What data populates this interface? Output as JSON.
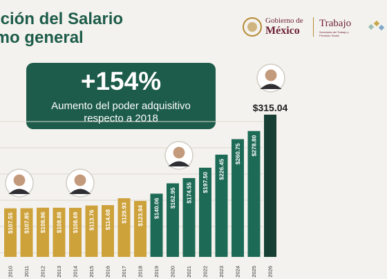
{
  "header": {
    "title_line1": "ución del Salario",
    "title_line2": "imo general",
    "gov_line1": "Gobierno de",
    "gov_line2": "México",
    "ministry": "Trabajo",
    "ministry_sub": "Secretaría del Trabajo y Previsión Social"
  },
  "callout": {
    "headline": "+154%",
    "line1": "Aumento del poder adquisitivo",
    "line2": "respecto a 2018"
  },
  "colors": {
    "gold": "#cda23b",
    "green": "#1d6a56",
    "dark_green": "#173f34",
    "title": "#1d5c4a"
  },
  "chart_data": {
    "type": "bar",
    "categories": [
      "2010",
      "2011",
      "2012",
      "2013",
      "2014",
      "2015",
      "2016",
      "2017",
      "2018",
      "2019",
      "2020",
      "2021",
      "2022",
      "2023",
      "2024",
      "2025",
      "2026"
    ],
    "values": [
      107.55,
      107.85,
      108.96,
      108.88,
      108.69,
      113.76,
      114.68,
      129.93,
      123.94,
      140.06,
      162.95,
      174.55,
      197.5,
      226.45,
      260.75,
      278.8,
      315.04
    ],
    "labels": [
      "$107.55",
      "$107.85",
      "$108.96",
      "$108.88",
      "$108.69",
      "$113.76",
      "$114.68",
      "$129.93",
      "$123.94",
      "$140.06",
      "$162.95",
      "$174.55",
      "$197.50",
      "$226.45",
      "$260.75",
      "$278.80",
      "$315.04"
    ],
    "ylim": [
      0,
      320
    ],
    "title": "",
    "xlabel": "",
    "ylabel": ""
  }
}
